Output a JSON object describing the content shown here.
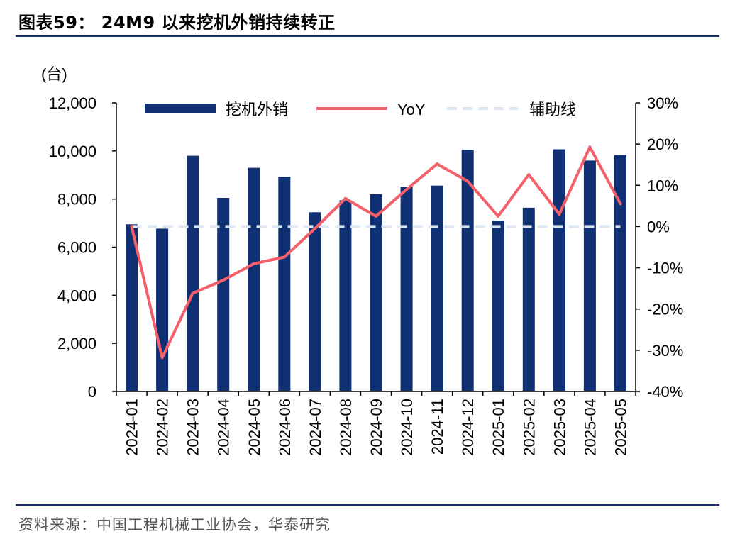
{
  "header": {
    "title": "图表59： 24M9 以来挖机外销持续转正"
  },
  "footer": {
    "source": "资料来源：中国工程机械工业协会，华泰研究"
  },
  "colors": {
    "bar": "#0f3173",
    "line": "#f4606a",
    "aux": "#dce6f3",
    "rule": "#1a2f6e"
  },
  "chart_data": {
    "type": "bar",
    "title": "",
    "xlabel": "",
    "ylabel": "(台)",
    "ylim": [
      0,
      12000
    ],
    "y2lim": [
      -40,
      30
    ],
    "yticks": [
      "0",
      "2,000",
      "4,000",
      "6,000",
      "8,000",
      "10,000",
      "12,000"
    ],
    "y2ticks": [
      "-40%",
      "-30%",
      "-20%",
      "-10%",
      "0%",
      "10%",
      "20%",
      "30%"
    ],
    "categories": [
      "2024-01",
      "2024-02",
      "2024-03",
      "2024-04",
      "2024-05",
      "2024-06",
      "2024-07",
      "2024-08",
      "2024-09",
      "2024-10",
      "2024-11",
      "2024-12",
      "2025-01",
      "2025-02",
      "2025-03",
      "2025-04",
      "2025-05"
    ],
    "legend_position": "top",
    "grid": false,
    "series": [
      {
        "name": "挖机外销",
        "type": "bar",
        "axis": "left",
        "values": [
          6950,
          6770,
          9800,
          8050,
          9300,
          8930,
          7450,
          7950,
          8200,
          8520,
          8560,
          10050,
          7100,
          7640,
          10070,
          9600,
          9830
        ]
      },
      {
        "name": "YoY",
        "type": "line",
        "axis": "right",
        "values": [
          0,
          -31.8,
          -16.2,
          -13.0,
          -9.0,
          -7.4,
          -0.5,
          6.8,
          2.5,
          9.0,
          15.2,
          11.0,
          2.5,
          12.6,
          3.0,
          19.3,
          5.5
        ]
      },
      {
        "name": "辅助线",
        "type": "line-dashed",
        "axis": "right",
        "values": [
          0,
          0,
          0,
          0,
          0,
          0,
          0,
          0,
          0,
          0,
          0,
          0,
          0,
          0,
          0,
          0,
          0
        ]
      }
    ]
  }
}
